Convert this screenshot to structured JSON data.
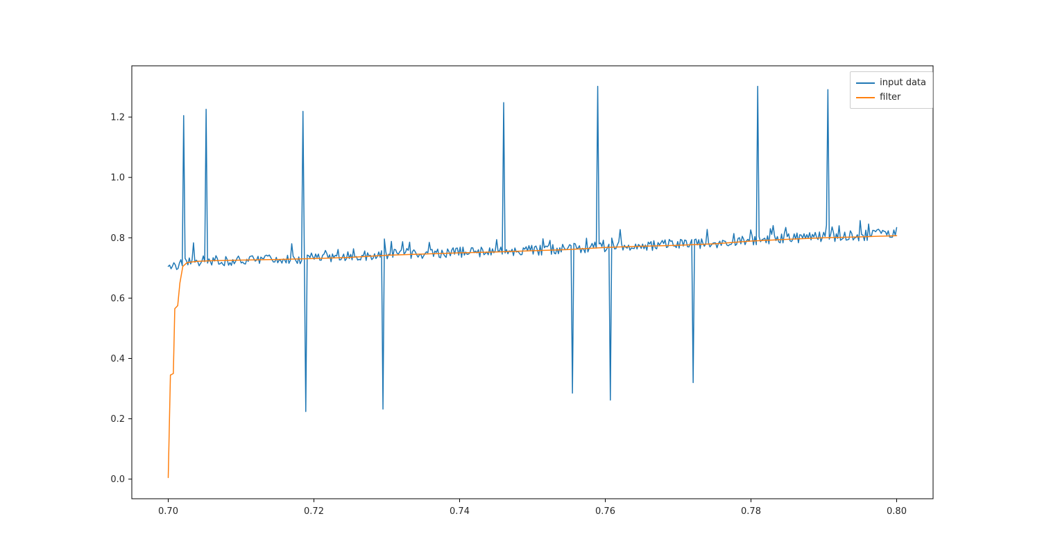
{
  "figure": {
    "background": "#ffffff"
  },
  "legend": {
    "items": [
      {
        "label": "input data",
        "color": "#1f77b4"
      },
      {
        "label": "filter",
        "color": "#ff7f0e"
      }
    ]
  },
  "chart_data": {
    "type": "line",
    "title": "",
    "xlabel": "",
    "ylabel": "",
    "xlim": [
      0.695,
      0.805
    ],
    "ylim": [
      -0.065,
      1.37
    ],
    "xticks": [
      0.7,
      0.72,
      0.74,
      0.76,
      0.78,
      0.8
    ],
    "yticks": [
      0.0,
      0.2,
      0.4,
      0.6,
      0.8,
      1.0,
      1.2
    ],
    "grid": false,
    "legend_position": "upper right",
    "series": [
      {
        "name": "input data",
        "color": "#1f77b4",
        "line_width": 1.5,
        "synthesis": {
          "n_points": 520,
          "x_start": 0.7,
          "x_end": 0.8,
          "baseline": [
            [
              0.7,
              0.7
            ],
            [
              0.702,
              0.718
            ],
            [
              0.706,
              0.722
            ],
            [
              0.71,
              0.724
            ],
            [
              0.715,
              0.726
            ],
            [
              0.72,
              0.731
            ],
            [
              0.725,
              0.735
            ],
            [
              0.73,
              0.744
            ],
            [
              0.735,
              0.747
            ],
            [
              0.74,
              0.75
            ],
            [
              0.745,
              0.753
            ],
            [
              0.75,
              0.757
            ],
            [
              0.755,
              0.762
            ],
            [
              0.76,
              0.769
            ],
            [
              0.765,
              0.773
            ],
            [
              0.77,
              0.776
            ],
            [
              0.775,
              0.781
            ],
            [
              0.78,
              0.79
            ],
            [
              0.785,
              0.796
            ],
            [
              0.79,
              0.801
            ],
            [
              0.795,
              0.805
            ],
            [
              0.8,
              0.815
            ]
          ],
          "noise_amplitude": 0.035,
          "bump_amplitude": 0.05,
          "bump_probability": 0.12,
          "seed": 42
        },
        "spikes_up": [
          [
            0.7022,
            1.205
          ],
          [
            0.7052,
            1.226
          ],
          [
            0.7185,
            1.219
          ],
          [
            0.746,
            1.248
          ],
          [
            0.759,
            1.302
          ],
          [
            0.781,
            1.302
          ],
          [
            0.7905,
            1.291
          ]
        ],
        "spikes_down": [
          [
            0.7188,
            0.224
          ],
          [
            0.7295,
            0.232
          ],
          [
            0.7555,
            0.285
          ],
          [
            0.7607,
            0.262
          ],
          [
            0.772,
            0.32
          ]
        ]
      },
      {
        "name": "filter",
        "color": "#ff7f0e",
        "line_width": 1.5,
        "points": [
          [
            0.7,
            0.005
          ],
          [
            0.7003,
            0.345
          ],
          [
            0.7007,
            0.35
          ],
          [
            0.7009,
            0.565
          ],
          [
            0.7013,
            0.575
          ],
          [
            0.7016,
            0.65
          ],
          [
            0.702,
            0.705
          ],
          [
            0.7026,
            0.718
          ],
          [
            0.704,
            0.722
          ],
          [
            0.706,
            0.724
          ],
          [
            0.71,
            0.726
          ],
          [
            0.715,
            0.728
          ],
          [
            0.72,
            0.731
          ],
          [
            0.725,
            0.735
          ],
          [
            0.73,
            0.742
          ],
          [
            0.735,
            0.746
          ],
          [
            0.74,
            0.75
          ],
          [
            0.745,
            0.753
          ],
          [
            0.75,
            0.757
          ],
          [
            0.755,
            0.761
          ],
          [
            0.76,
            0.768
          ],
          [
            0.765,
            0.772
          ],
          [
            0.77,
            0.775
          ],
          [
            0.775,
            0.78
          ],
          [
            0.78,
            0.789
          ],
          [
            0.785,
            0.795
          ],
          [
            0.79,
            0.8
          ],
          [
            0.795,
            0.803
          ],
          [
            0.8,
            0.807
          ]
        ]
      }
    ]
  }
}
